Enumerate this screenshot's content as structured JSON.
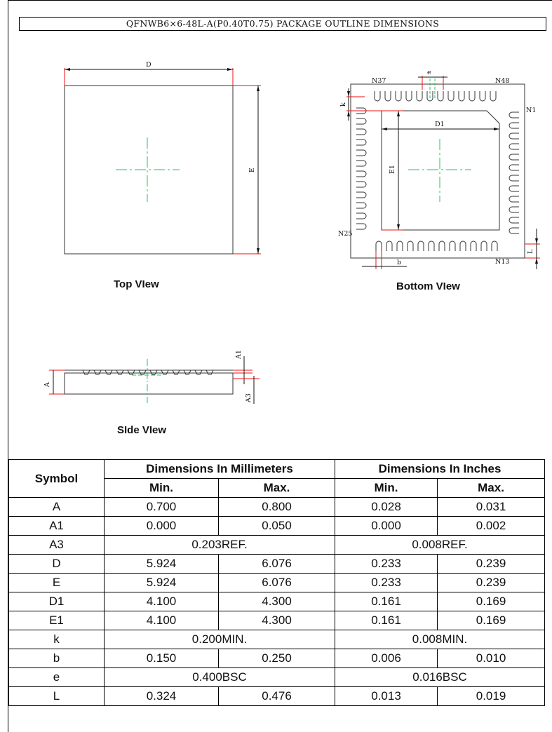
{
  "title": "QFNWB6×6-48L-A(P0.40T0.75) PACKAGE OUTLINE DIMENSIONS",
  "views": {
    "top": "Top VIew",
    "bottom": "Bottom  VIew",
    "side": "SIde VIew"
  },
  "drawing_labels": {
    "D": "D",
    "E": "E",
    "D1": "D1",
    "E1": "E1",
    "e": "e",
    "k": "k",
    "b": "b",
    "L": "L",
    "A": "A",
    "A1": "A1",
    "A3": "A3",
    "N37": "N37",
    "N48": "N48",
    "N1": "N1",
    "N25": "N25",
    "N13": "N13"
  },
  "table": {
    "symbol_header": "Symbol",
    "mm_header": "Dimensions In Millimeters",
    "in_header": "Dimensions In Inches",
    "min": "Min.",
    "max": "Max.",
    "rows": [
      {
        "symbol": "A",
        "mm_min": "0.700",
        "mm_max": "0.800",
        "in_min": "0.028",
        "in_max": "0.031"
      },
      {
        "symbol": "A1",
        "mm_min": "0.000",
        "mm_max": "0.050",
        "in_min": "0.000",
        "in_max": "0.002"
      },
      {
        "symbol": "A3",
        "mm_span": "0.203REF.",
        "in_span": "0.008REF."
      },
      {
        "symbol": "D",
        "mm_min": "5.924",
        "mm_max": "6.076",
        "in_min": "0.233",
        "in_max": "0.239"
      },
      {
        "symbol": "E",
        "mm_min": "5.924",
        "mm_max": "6.076",
        "in_min": "0.233",
        "in_max": "0.239"
      },
      {
        "symbol": "D1",
        "mm_min": "4.100",
        "mm_max": "4.300",
        "in_min": "0.161",
        "in_max": "0.169"
      },
      {
        "symbol": "E1",
        "mm_min": "4.100",
        "mm_max": "4.300",
        "in_min": "0.161",
        "in_max": "0.169"
      },
      {
        "symbol": "k",
        "mm_span": "0.200MIN.",
        "in_span": "0.008MIN."
      },
      {
        "symbol": "b",
        "mm_min": "0.150",
        "mm_max": "0.250",
        "in_min": "0.006",
        "in_max": "0.010"
      },
      {
        "symbol": "e",
        "mm_span": "0.400BSC",
        "in_span": "0.016BSC"
      },
      {
        "symbol": "L",
        "mm_min": "0.324",
        "mm_max": "0.476",
        "in_min": "0.013",
        "in_max": "0.019"
      }
    ]
  }
}
